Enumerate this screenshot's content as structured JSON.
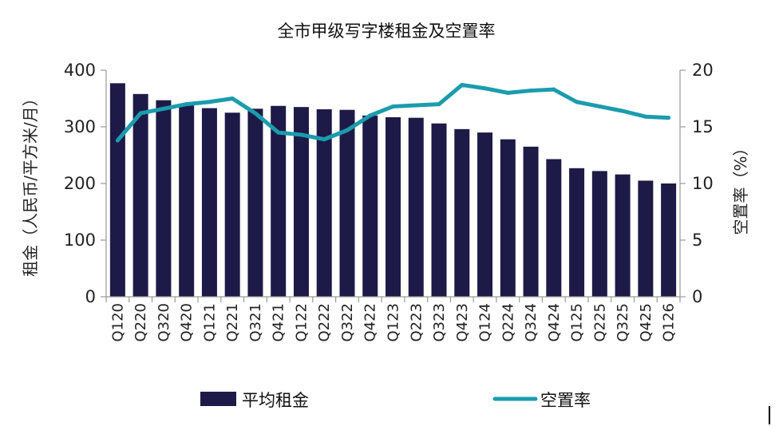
{
  "chart_data": {
    "type": "bar",
    "title": "全市甲级写字楼租金及空置率",
    "categories": [
      "Q120",
      "Q220",
      "Q320",
      "Q420",
      "Q121",
      "Q221",
      "Q321",
      "Q421",
      "Q122",
      "Q222",
      "Q322",
      "Q422",
      "Q123",
      "Q223",
      "Q323",
      "Q423",
      "Q124",
      "Q224",
      "Q324",
      "Q424",
      "Q125",
      "Q225",
      "Q325",
      "Q425",
      "Q126"
    ],
    "series": [
      {
        "name": "平均租金",
        "type": "bar",
        "axis": "left",
        "color": "#1e1a47",
        "values": [
          377,
          358,
          347,
          338,
          333,
          325,
          332,
          337,
          335,
          331,
          330,
          320,
          317,
          316,
          306,
          296,
          290,
          278,
          265,
          243,
          227,
          222,
          216,
          205,
          200
        ]
      },
      {
        "name": "空置率",
        "type": "line",
        "axis": "right",
        "color": "#1b9cad",
        "values": [
          13.8,
          16.2,
          16.6,
          17.0,
          17.2,
          17.5,
          16.2,
          14.5,
          14.3,
          13.9,
          14.7,
          16.0,
          16.8,
          16.9,
          17.0,
          18.7,
          18.4,
          18.0,
          18.2,
          18.3,
          17.2,
          16.8,
          16.4,
          15.9,
          15.8
        ]
      }
    ],
    "ylabel": "租金（人民币/平方米/月）",
    "ylim": [
      0,
      400
    ],
    "yticks": [
      0,
      100,
      200,
      300,
      400
    ],
    "y2label": "空置率（%）",
    "y2lim": [
      0,
      20
    ],
    "y2ticks": [
      0,
      5,
      10,
      15,
      20
    ],
    "grid": false,
    "legend_position": "bottom"
  }
}
